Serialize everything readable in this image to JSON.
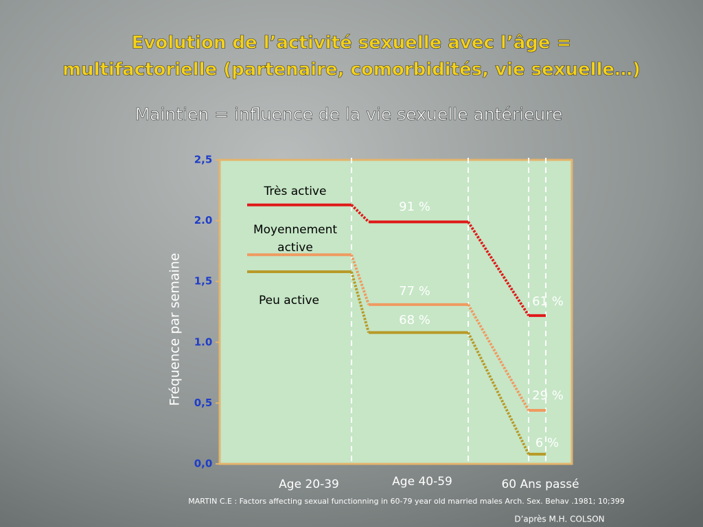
{
  "chart_data": {
    "type": "step",
    "title": [
      "Evolution de l’activité sexuelle avec l’âge =",
      "multifactorielle (partenaire, comorbidités, vie sexuelle…)"
    ],
    "subtitle": "Maintien =  influence de la vie sexuelle antérieure",
    "y_label": "Fréquence par semaine",
    "categories": [
      "Age 20-39",
      "Age 40-59",
      "60 Ans passé"
    ],
    "series": [
      {
        "name": "Très active",
        "color": "#e01818",
        "values": [
          2.13,
          1.99,
          1.22
        ]
      },
      {
        "name": "Moyennement active",
        "color": "#f09a60",
        "values": [
          1.72,
          1.31,
          0.44
        ]
      },
      {
        "name": "Peu active",
        "color": "#b89a28",
        "values": [
          1.58,
          1.08,
          0.08
        ]
      }
    ],
    "annotations": [
      "91 %",
      "77 %",
      "68 %",
      "61 %",
      "29 %",
      "6 %"
    ],
    "ylim": [
      0,
      2.5
    ],
    "yticks": [
      {
        "value": 0,
        "label": "0,0"
      },
      {
        "value": 0.5,
        "label": "0,5"
      },
      {
        "value": 1,
        "label": "1.0"
      },
      {
        "value": 1.5,
        "label": "1,5"
      },
      {
        "value": 2,
        "label": "2.0"
      },
      {
        "value": 2.5,
        "label": "2,5"
      }
    ],
    "source": "MARTIN C.E : Factors affecting sexual functionning in  60-79 year old married males Arch. Sex. Behav .1981; 10;399",
    "credit": "D’après M.H. COLSON"
  }
}
